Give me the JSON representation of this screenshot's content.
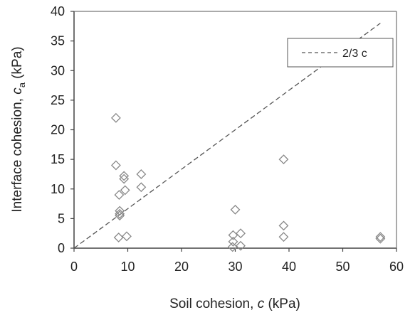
{
  "chart_data": {
    "type": "scatter",
    "xlabel": {
      "prefix": "Soil cohesion, ",
      "symbol": "c",
      "suffix": " (kPa)"
    },
    "ylabel": {
      "prefix": "Interface cohesion, ",
      "symbol": "c",
      "subscript": "a",
      "suffix": " (kPa)"
    },
    "xlim": [
      0,
      60
    ],
    "ylim": [
      0,
      40
    ],
    "xticks": [
      0,
      10,
      20,
      30,
      40,
      50,
      60
    ],
    "yticks": [
      0,
      5,
      10,
      15,
      20,
      25,
      30,
      35,
      40
    ],
    "grid": false,
    "legend": {
      "position": "top-right",
      "label": "2/3 c"
    },
    "reference_line": {
      "label": "2/3 c",
      "slope": 0.6667,
      "style": "dashed",
      "color": "#555555"
    },
    "series": [
      {
        "marker": "diamond-open",
        "color": "#888888",
        "points": [
          [
            7.8,
            22.0
          ],
          [
            7.8,
            14.0
          ],
          [
            8.3,
            1.8
          ],
          [
            8.4,
            9.0
          ],
          [
            8.5,
            6.3
          ],
          [
            8.5,
            5.8
          ],
          [
            8.5,
            5.5
          ],
          [
            9.3,
            12.2
          ],
          [
            9.3,
            11.7
          ],
          [
            9.5,
            9.8
          ],
          [
            9.8,
            2.0
          ],
          [
            12.5,
            12.5
          ],
          [
            12.5,
            10.3
          ],
          [
            29.5,
            0.2
          ],
          [
            29.6,
            2.2
          ],
          [
            29.6,
            1.1
          ],
          [
            30.0,
            6.5
          ],
          [
            31.0,
            2.5
          ],
          [
            31.0,
            0.4
          ],
          [
            39.0,
            15.0
          ],
          [
            39.0,
            3.8
          ],
          [
            39.0,
            1.9
          ],
          [
            57.0,
            1.9
          ],
          [
            57.0,
            1.6
          ]
        ]
      }
    ]
  }
}
